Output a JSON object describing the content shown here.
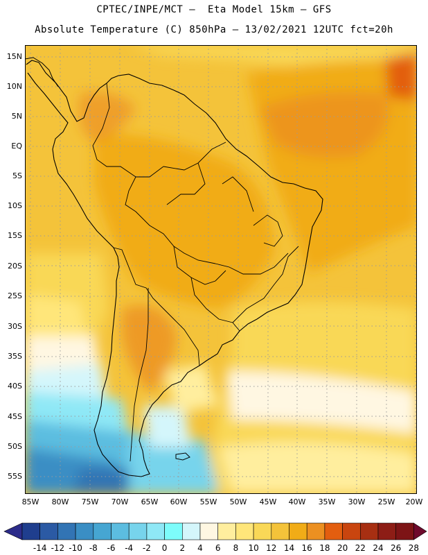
{
  "header": {
    "line1": "CPTEC/INPE/MCT –  Eta Model 15km – GFS",
    "line2": "Absolute Temperature (C) 850hPa – 13/02/2021 12UTC fct=20h"
  },
  "map": {
    "lat_labels": [
      "15N",
      "10N",
      "5N",
      "EQ",
      "5S",
      "10S",
      "15S",
      "20S",
      "25S",
      "30S",
      "35S",
      "40S",
      "45S",
      "50S",
      "55S"
    ],
    "lon_labels": [
      "85W",
      "80W",
      "75W",
      "70W",
      "65W",
      "60W",
      "55W",
      "50W",
      "45W",
      "40W",
      "35W",
      "30W",
      "25W",
      "20W"
    ]
  },
  "colorbar": {
    "labels": [
      "-14",
      "-12",
      "-10",
      "-8",
      "-6",
      "-4",
      "-2",
      "0",
      "2",
      "4",
      "6",
      "8",
      "10",
      "12",
      "14",
      "16",
      "18",
      "20",
      "22",
      "24",
      "26",
      "28"
    ],
    "colors": [
      "#1f3e8e",
      "#2b5aa4",
      "#3274b4",
      "#3a8ec4",
      "#46a6d2",
      "#5cbde0",
      "#77d4ec",
      "#8fe8f6",
      "#7dfcfb",
      "#d4f6fb",
      "#fff7e2",
      "#ffee9e",
      "#ffe67a",
      "#f9d857",
      "#f4c33a",
      "#f1ac17",
      "#ec9021",
      "#e35e0f",
      "#c9450f",
      "#a72f12",
      "#8d1d16",
      "#7d1416"
    ],
    "low_color": "#2c2c8a",
    "high_color": "#6f0a2c"
  }
}
